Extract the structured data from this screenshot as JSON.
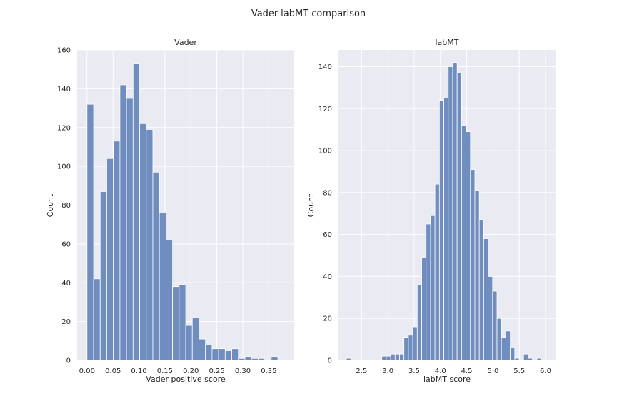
{
  "figure": {
    "title": "Vader-labMT comparison"
  },
  "colors": {
    "panel_bg": "#eaeaf2",
    "grid": "#ffffff",
    "bar_fill": "#6f8ebf",
    "bar_edge": "#ffffff",
    "text": "#262626"
  },
  "chart_data": [
    {
      "type": "bar",
      "title": "Vader",
      "xlabel": "Vader positive score",
      "ylabel": "Count",
      "xlim": [
        -0.019,
        0.399
      ],
      "ylim": [
        0,
        160
      ],
      "xticks": [
        "0.00",
        "0.05",
        "0.10",
        "0.15",
        "0.20",
        "0.25",
        "0.30",
        "0.35"
      ],
      "xtick_values": [
        0.0,
        0.05,
        0.1,
        0.15,
        0.2,
        0.25,
        0.3,
        0.35
      ],
      "yticks": [
        0,
        20,
        40,
        60,
        80,
        100,
        120,
        140,
        160
      ],
      "grid": true,
      "bin_width": 0.01267,
      "bin_edges_start": 0.0,
      "values": [
        132,
        42,
        87,
        104,
        113,
        142,
        135,
        153,
        122,
        119,
        97,
        76,
        62,
        38,
        39,
        18,
        22,
        11,
        8,
        6,
        6,
        5,
        6,
        1,
        2,
        1,
        1,
        0,
        2
      ]
    },
    {
      "type": "bar",
      "title": "labMT",
      "xlabel": "labMT score",
      "ylabel": "Count",
      "xlim": [
        2.06,
        6.19
      ],
      "ylim": [
        0,
        148
      ],
      "xticks": [
        "2.5",
        "3.0",
        "3.5",
        "4.0",
        "4.5",
        "5.0",
        "5.5",
        "6.0"
      ],
      "xtick_values": [
        2.5,
        3.0,
        3.5,
        4.0,
        4.5,
        5.0,
        5.5,
        6.0
      ],
      "yticks": [
        0,
        20,
        40,
        60,
        80,
        100,
        120,
        140
      ],
      "grid": true,
      "bin_width": 0.0843,
      "bin_edges_start": 2.21,
      "values": [
        1,
        0,
        0,
        0,
        0,
        0,
        0,
        0,
        2,
        2,
        3,
        3,
        3,
        11,
        12,
        16,
        36,
        49,
        65,
        69,
        84,
        124,
        125,
        140,
        142,
        137,
        112,
        109,
        91,
        81,
        67,
        58,
        40,
        33,
        20,
        11,
        14,
        6,
        1,
        0,
        3,
        1,
        0,
        1
      ]
    }
  ]
}
